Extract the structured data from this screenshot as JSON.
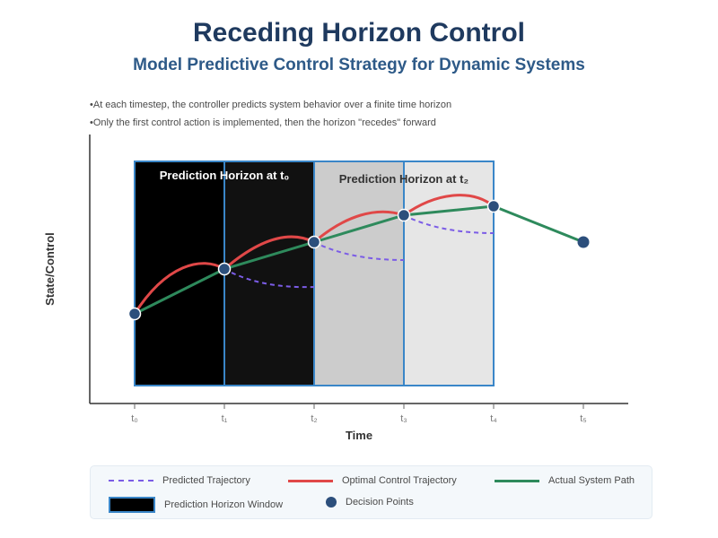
{
  "header": {
    "title": "Receding Horizon Control",
    "subtitle": "Model Predictive Control Strategy for Dynamic Systems"
  },
  "bullets": [
    "At each timestep, the controller predicts system behavior over a finite time horizon",
    "Only the first control action is implemented, then the horizon \"recedes\" forward"
  ],
  "axes": {
    "xlabel": "Time",
    "ylabel": "State/Control",
    "ticks": [
      "t₀",
      "t₁",
      "t₂",
      "t₃",
      "t₄",
      "t₅"
    ]
  },
  "horizons": [
    {
      "label": "Prediction Horizon at t₀",
      "from_tick": 0,
      "to_tick": 2
    },
    {
      "label": "Prediction Horizon at t₂",
      "from_tick": 2,
      "to_tick": 4
    }
  ],
  "colors": {
    "predicted": "#7b5ce6",
    "optimal": "#e04848",
    "actual": "#2e8a5c",
    "window_border": "#3a86c8",
    "point": "#2c4f7c",
    "title": "#1f3a5f"
  },
  "legend": {
    "predicted": "Predicted Trajectory",
    "optimal": "Optimal Control Trajectory",
    "actual": "Actual System Path",
    "window": "Prediction Horizon Window",
    "points": "Decision Points"
  }
}
